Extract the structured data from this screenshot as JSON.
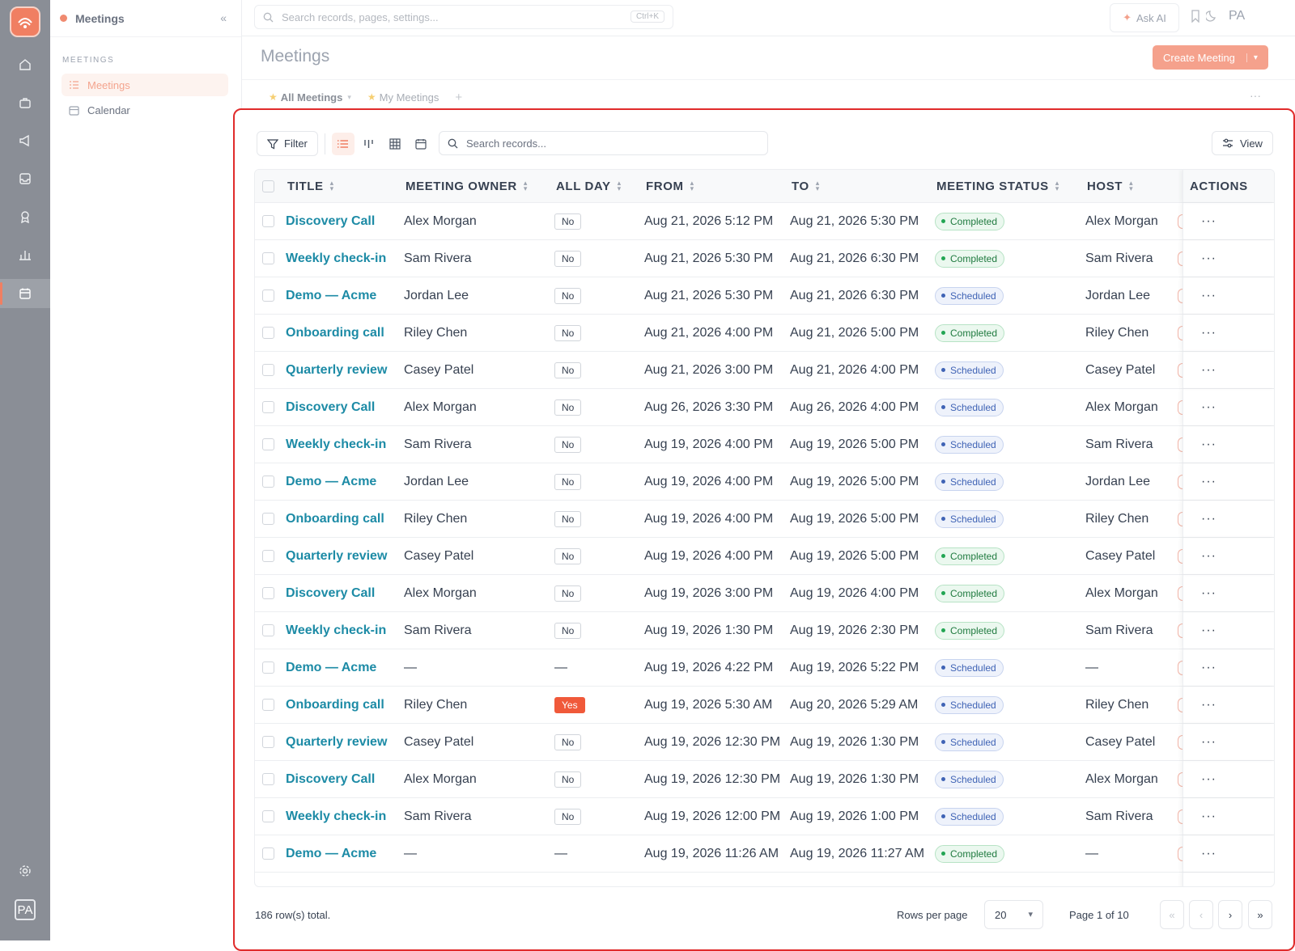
{
  "app": {
    "section_title": "Meetings",
    "sidebar_section_label": "MEETINGS",
    "sidebar_items": [
      {
        "label": "Meetings",
        "icon": "list-icon",
        "active": true
      },
      {
        "label": "Calendar",
        "icon": "calendar-icon",
        "active": false
      }
    ],
    "user_initials": "PA",
    "accent": "#f07f62"
  },
  "topbar": {
    "search_placeholder": "Search records, pages, settings...",
    "shortcut": "Ctrl+K",
    "ask_ai": "Ask AI",
    "avatar": "PA"
  },
  "page": {
    "title": "Meetings",
    "create_button": "Create Meeting",
    "tabs": [
      {
        "label": "All Meetings",
        "active": true
      },
      {
        "label": "My Meetings",
        "active": false
      }
    ]
  },
  "toolbar": {
    "filter_label": "Filter",
    "search_placeholder": "Search records...",
    "view_label": "View"
  },
  "table": {
    "columns": [
      "TITLE",
      "MEETING OWNER",
      "ALL DAY",
      "FROM",
      "TO",
      "MEETING STATUS",
      "HOST",
      "ACTIONS"
    ],
    "rows": [
      {
        "title": "Discovery Call",
        "owner": "Alex Morgan",
        "all_day": "No",
        "from": "Aug 21, 2026 5:12 PM",
        "to": "Aug 21, 2026 5:30 PM",
        "status": "Completed",
        "host": "Alex Morgan"
      },
      {
        "title": "Weekly check-in",
        "owner": "Sam Rivera",
        "all_day": "No",
        "from": "Aug 21, 2026 5:30 PM",
        "to": "Aug 21, 2026 6:30 PM",
        "status": "Completed",
        "host": "Sam Rivera"
      },
      {
        "title": "Demo — Acme",
        "owner": "Jordan Lee",
        "all_day": "No",
        "from": "Aug 21, 2026 5:30 PM",
        "to": "Aug 21, 2026 6:30 PM",
        "status": "Scheduled",
        "host": "Jordan Lee"
      },
      {
        "title": "Onboarding call",
        "owner": "Riley Chen",
        "all_day": "No",
        "from": "Aug 21, 2026 4:00 PM",
        "to": "Aug 21, 2026 5:00 PM",
        "status": "Completed",
        "host": "Riley Chen"
      },
      {
        "title": "Quarterly review",
        "owner": "Casey Patel",
        "all_day": "No",
        "from": "Aug 21, 2026 3:00 PM",
        "to": "Aug 21, 2026 4:00 PM",
        "status": "Scheduled",
        "host": "Casey Patel"
      },
      {
        "title": "Discovery Call",
        "owner": "Alex Morgan",
        "all_day": "No",
        "from": "Aug 26, 2026 3:30 PM",
        "to": "Aug 26, 2026 4:00 PM",
        "status": "Scheduled",
        "host": "Alex Morgan"
      },
      {
        "title": "Weekly check-in",
        "owner": "Sam Rivera",
        "all_day": "No",
        "from": "Aug 19, 2026 4:00 PM",
        "to": "Aug 19, 2026 5:00 PM",
        "status": "Scheduled",
        "host": "Sam Rivera"
      },
      {
        "title": "Demo — Acme",
        "owner": "Jordan Lee",
        "all_day": "No",
        "from": "Aug 19, 2026 4:00 PM",
        "to": "Aug 19, 2026 5:00 PM",
        "status": "Scheduled",
        "host": "Jordan Lee"
      },
      {
        "title": "Onboarding call",
        "owner": "Riley Chen",
        "all_day": "No",
        "from": "Aug 19, 2026 4:00 PM",
        "to": "Aug 19, 2026 5:00 PM",
        "status": "Scheduled",
        "host": "Riley Chen"
      },
      {
        "title": "Quarterly review",
        "owner": "Casey Patel",
        "all_day": "No",
        "from": "Aug 19, 2026 4:00 PM",
        "to": "Aug 19, 2026 5:00 PM",
        "status": "Completed",
        "host": "Casey Patel"
      },
      {
        "title": "Discovery Call",
        "owner": "Alex Morgan",
        "all_day": "No",
        "from": "Aug 19, 2026 3:00 PM",
        "to": "Aug 19, 2026 4:00 PM",
        "status": "Completed",
        "host": "Alex Morgan"
      },
      {
        "title": "Weekly check-in",
        "owner": "Sam Rivera",
        "all_day": "No",
        "from": "Aug 19, 2026 1:30 PM",
        "to": "Aug 19, 2026 2:30 PM",
        "status": "Completed",
        "host": "Sam Rivera"
      },
      {
        "title": "Demo — Acme",
        "owner": "—",
        "all_day": "—",
        "from": "Aug 19, 2026 4:22 PM",
        "to": "Aug 19, 2026 5:22 PM",
        "status": "Scheduled",
        "host": "—"
      },
      {
        "title": "Onboarding call",
        "owner": "Riley Chen",
        "all_day": "Yes",
        "from": "Aug 19, 2026 5:30 AM",
        "to": "Aug 20, 2026 5:29 AM",
        "status": "Scheduled",
        "host": "Riley Chen"
      },
      {
        "title": "Quarterly review",
        "owner": "Casey Patel",
        "all_day": "No",
        "from": "Aug 19, 2026 12:30 PM",
        "to": "Aug 19, 2026 1:30 PM",
        "status": "Scheduled",
        "host": "Casey Patel"
      },
      {
        "title": "Discovery Call",
        "owner": "Alex Morgan",
        "all_day": "No",
        "from": "Aug 19, 2026 12:30 PM",
        "to": "Aug 19, 2026 1:30 PM",
        "status": "Scheduled",
        "host": "Alex Morgan"
      },
      {
        "title": "Weekly check-in",
        "owner": "Sam Rivera",
        "all_day": "No",
        "from": "Aug 19, 2026 12:00 PM",
        "to": "Aug 19, 2026 1:00 PM",
        "status": "Scheduled",
        "host": "Sam Rivera"
      },
      {
        "title": "Demo — Acme",
        "owner": "—",
        "all_day": "—",
        "from": "Aug 19, 2026 11:26 AM",
        "to": "Aug 19, 2026 11:27 AM",
        "status": "Completed",
        "host": "—"
      }
    ],
    "status_colors": {
      "Completed": "#22a553",
      "Scheduled": "#3f63b5"
    }
  },
  "footer": {
    "total": "186 row(s) total.",
    "rows_per_page_label": "Rows per page",
    "rows_per_page": "20",
    "page_info": "Page 1 of 10"
  }
}
